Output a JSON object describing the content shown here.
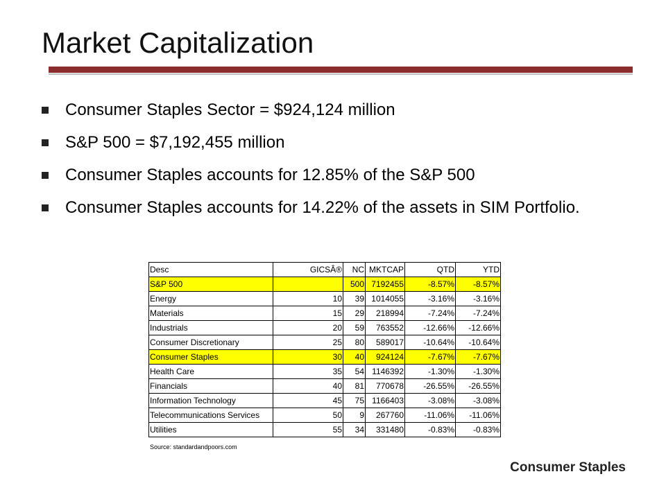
{
  "slide": {
    "title": "Market Capitalization",
    "footer": "Consumer Staples",
    "source": "Source: standardandpoors.com"
  },
  "bullets": [
    "Consumer Staples Sector = $924,124 million",
    "S&P 500 = $7,192,455 million",
    "Consumer Staples accounts for 12.85% of the S&P 500",
    "Consumer Staples accounts for 14.22% of the assets in SIM Portfolio."
  ],
  "colors": {
    "rule": "#8b2d2d",
    "highlight": "#ffff00"
  },
  "table": {
    "headers": [
      "Desc",
      "GICSÂ®",
      "NC",
      "MKTCAP",
      "QTD",
      "YTD"
    ],
    "rows": [
      [
        "S&P 500",
        "",
        "500",
        "7192455",
        "-8.57%",
        "-8.57%"
      ],
      [
        "Energy",
        "10",
        "39",
        "1014055",
        "-3.16%",
        "-3.16%"
      ],
      [
        "Materials",
        "15",
        "29",
        "218994",
        "-7.24%",
        "-7.24%"
      ],
      [
        "Industrials",
        "20",
        "59",
        "763552",
        "-12.66%",
        "-12.66%"
      ],
      [
        "Consumer Discretionary",
        "25",
        "80",
        "589017",
        "-10.64%",
        "-10.64%"
      ],
      [
        "Consumer Staples",
        "30",
        "40",
        "924124",
        "-7.67%",
        "-7.67%"
      ],
      [
        "Health Care",
        "35",
        "54",
        "1146392",
        "-1.30%",
        "-1.30%"
      ],
      [
        "Financials",
        "40",
        "81",
        "770678",
        "-26.55%",
        "-26.55%"
      ],
      [
        "Information Technology",
        "45",
        "75",
        "1166403",
        "-3.08%",
        "-3.08%"
      ],
      [
        "Telecommunications Services",
        "50",
        "9",
        "267760",
        "-11.06%",
        "-11.06%"
      ],
      [
        "Utilities",
        "55",
        "34",
        "331480",
        "-0.83%",
        "-0.83%"
      ]
    ],
    "highlighted_rows": [
      0,
      5
    ]
  }
}
